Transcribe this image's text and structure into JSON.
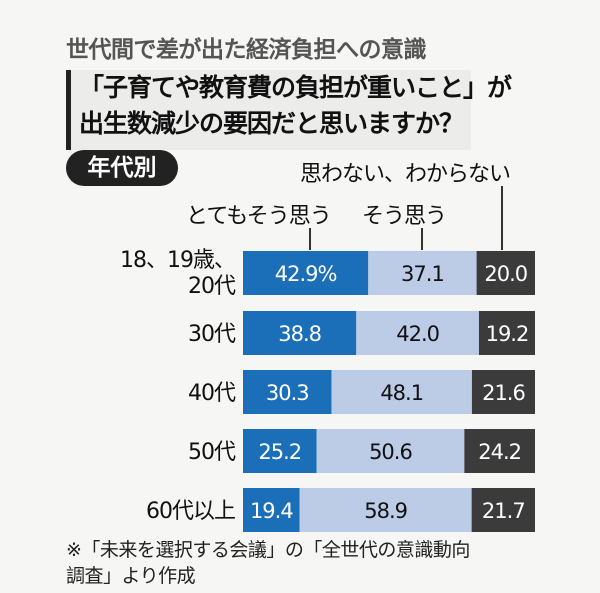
{
  "title": "世代間で差が出た経済負担への意識",
  "question": [
    "「子育てや教育費の負担が重いこと」が",
    "出生数減少の要因だと思いますか？"
  ],
  "badge": "年代別",
  "colors": {
    "とてもそう思う": "#1b6fb8",
    "そう思う": "#bccbe6",
    "思わない、わからない": "#3b3b3b"
  },
  "chart_data": {
    "type": "bar",
    "orientation": "horizontal",
    "stacked": true,
    "unit": "%",
    "categories": [
      "18、19歳、20代",
      "30代",
      "40代",
      "50代",
      "60代以上"
    ],
    "category_lines": [
      [
        "18、19歳、",
        "20代"
      ],
      [
        "30代"
      ],
      [
        "40代"
      ],
      [
        "50代"
      ],
      [
        "60代以上"
      ]
    ],
    "series": [
      {
        "name": "とてもそう思う",
        "values": [
          42.9,
          38.8,
          30.3,
          25.2,
          19.4
        ],
        "labels": [
          "42.9%",
          "38.8",
          "30.3",
          "25.2",
          "19.4"
        ]
      },
      {
        "name": "そう思う",
        "values": [
          37.1,
          42.0,
          48.1,
          50.6,
          58.9
        ],
        "labels": [
          "37.1",
          "42.0",
          "48.1",
          "50.6",
          "58.9"
        ]
      },
      {
        "name": "思わない、わからない",
        "values": [
          20.0,
          19.2,
          21.6,
          24.2,
          21.7
        ],
        "labels": [
          "20.0",
          "19.2",
          "21.6",
          "24.2",
          "21.7"
        ]
      }
    ],
    "xlim": [
      0,
      100
    ],
    "grid": false,
    "legend": "top, callout labels"
  },
  "footnote": [
    "※「未来を選択する会議」の「全世代の意識動向",
    "調査」より作成"
  ]
}
